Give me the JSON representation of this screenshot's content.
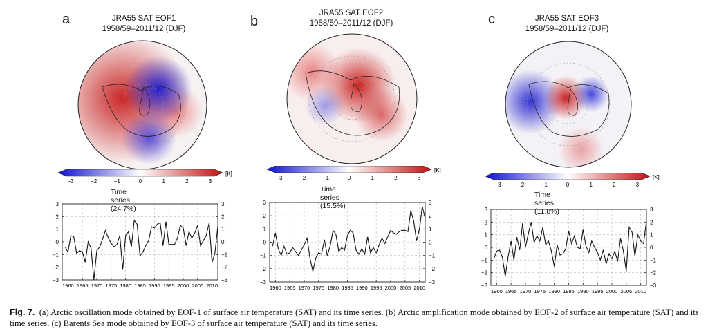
{
  "panels": [
    {
      "letter": "a",
      "title_line1": "JRA55 SAT EOF1",
      "title_line2": "1958/59–2011/12 (DJF)",
      "time_series_label": "Time series (24.7%)"
    },
    {
      "letter": "b",
      "title_line1": "JRA55 SAT EOF2",
      "title_line2": "1958/59–2011/12 (DJF)",
      "time_series_label": "Time series (15.5%)"
    },
    {
      "letter": "c",
      "title_line1": "JRA55 SAT EOF3",
      "title_line2": "1958/59–2011/12 (DJF)",
      "time_series_label": "Time series (11.8%)"
    }
  ],
  "colorbar": {
    "ticks": [
      "-3",
      "-2",
      "-1",
      "0",
      "1",
      "2",
      "3"
    ],
    "unit": "[K]",
    "colors": {
      "neg": "#1010d0",
      "mid": "#ffffff",
      "pos": "#c01010"
    }
  },
  "chart_data": [
    {
      "type": "line",
      "title": "",
      "xlim": [
        1958,
        2012
      ],
      "ylim": [
        -3,
        3
      ],
      "x_ticks": [
        "1960",
        "1965",
        "1970",
        "1975",
        "1980",
        "1985",
        "1990",
        "1995",
        "2000",
        "2005",
        "2010"
      ],
      "y_ticks": [
        "-3",
        "-2",
        "-1",
        "0",
        "1",
        "2",
        "3"
      ],
      "grid": true,
      "x": [
        1959,
        1960,
        1961,
        1962,
        1963,
        1964,
        1965,
        1966,
        1967,
        1968,
        1969,
        1970,
        1971,
        1972,
        1973,
        1974,
        1975,
        1976,
        1977,
        1978,
        1979,
        1980,
        1981,
        1982,
        1983,
        1984,
        1985,
        1986,
        1987,
        1988,
        1989,
        1990,
        1991,
        1992,
        1993,
        1994,
        1995,
        1996,
        1997,
        1998,
        1999,
        2000,
        2001,
        2002,
        2003,
        2004,
        2005,
        2006,
        2007,
        2008,
        2009,
        2010,
        2011,
        2012
      ],
      "values": [
        -0.4,
        -0.8,
        0.5,
        0.4,
        -0.9,
        -0.7,
        -0.8,
        -1.6,
        0.0,
        -0.5,
        -3.0,
        -0.7,
        -0.4,
        0.2,
        0.9,
        0.3,
        -0.1,
        -0.4,
        -0.2,
        0.5,
        -2.2,
        0.5,
        0.8,
        -0.4,
        1.7,
        1.4,
        -1.1,
        -0.8,
        -0.3,
        0.1,
        1.2,
        1.1,
        1.4,
        1.5,
        -0.3,
        1.6,
        -0.2,
        -0.2,
        -0.2,
        0.3,
        1.3,
        1.1,
        -0.3,
        0.8,
        0.3,
        0.7,
        1.3,
        -0.3,
        0.1,
        0.5,
        1.5,
        -1.6,
        -0.9,
        1.2
      ]
    },
    {
      "type": "line",
      "title": "",
      "xlim": [
        1958,
        2012
      ],
      "ylim": [
        -3,
        3
      ],
      "x_ticks": [
        "1960",
        "1965",
        "1970",
        "1975",
        "1980",
        "1985",
        "1990",
        "1995",
        "2000",
        "2005",
        "2010"
      ],
      "y_ticks": [
        "-3",
        "-2",
        "-1",
        "0",
        "1",
        "2",
        "3"
      ],
      "grid": true,
      "x": [
        1959,
        1960,
        1961,
        1962,
        1963,
        1964,
        1965,
        1966,
        1967,
        1968,
        1969,
        1970,
        1971,
        1972,
        1973,
        1974,
        1975,
        1976,
        1977,
        1978,
        1979,
        1980,
        1981,
        1982,
        1983,
        1984,
        1985,
        1986,
        1987,
        1988,
        1989,
        1990,
        1991,
        1992,
        1993,
        1994,
        1995,
        1996,
        1997,
        1998,
        1999,
        2000,
        2001,
        2002,
        2003,
        2004,
        2005,
        2006,
        2007,
        2008,
        2009,
        2010,
        2011,
        2012
      ],
      "values": [
        -0.3,
        0.7,
        -0.5,
        -1.0,
        -0.3,
        -0.9,
        -0.8,
        -0.4,
        -0.7,
        -1.0,
        -0.6,
        -0.2,
        0.3,
        -1.2,
        -2.2,
        -1.2,
        -0.8,
        -0.9,
        0.2,
        -1.0,
        -0.3,
        0.9,
        0.6,
        -0.7,
        -0.4,
        -0.6,
        0.5,
        0.9,
        0.7,
        -0.6,
        -0.9,
        -0.5,
        -0.9,
        0.4,
        -0.8,
        -0.4,
        -0.8,
        -0.2,
        0.3,
        -0.1,
        0.4,
        0.9,
        0.7,
        0.6,
        0.8,
        0.9,
        0.9,
        0.8,
        2.4,
        1.6,
        0.1,
        1.0,
        2.7,
        1.8
      ]
    },
    {
      "type": "line",
      "title": "",
      "xlim": [
        1958,
        2012
      ],
      "ylim": [
        -3,
        3
      ],
      "x_ticks": [
        "1960",
        "1965",
        "1970",
        "1975",
        "1980",
        "1985",
        "1990",
        "1995",
        "2000",
        "2005",
        "2010"
      ],
      "y_ticks": [
        "-3",
        "-2",
        "-1",
        "0",
        "1",
        "2",
        "3"
      ],
      "grid": true,
      "x": [
        1959,
        1960,
        1961,
        1962,
        1963,
        1964,
        1965,
        1966,
        1967,
        1968,
        1969,
        1970,
        1971,
        1972,
        1973,
        1974,
        1975,
        1976,
        1977,
        1978,
        1979,
        1980,
        1981,
        1982,
        1983,
        1984,
        1985,
        1986,
        1987,
        1988,
        1989,
        1990,
        1991,
        1992,
        1993,
        1994,
        1995,
        1996,
        1997,
        1998,
        1999,
        2000,
        2001,
        2002,
        2003,
        2004,
        2005,
        2006,
        2007,
        2008,
        2009,
        2010,
        2011,
        2012
      ],
      "values": [
        -0.9,
        -0.3,
        -0.2,
        -0.8,
        -2.3,
        -0.7,
        0.5,
        -1.0,
        0.8,
        -0.2,
        1.9,
        0.0,
        1.1,
        2.0,
        0.4,
        0.9,
        0.5,
        1.6,
        0.2,
        0.5,
        -0.3,
        -1.5,
        0.2,
        -0.6,
        -0.5,
        -0.1,
        1.3,
        0.3,
        0.9,
        0.0,
        -0.1,
        1.4,
        0.1,
        -0.4,
        0.5,
        0.0,
        -0.4,
        -1.0,
        -0.2,
        -1.3,
        -0.5,
        -0.9,
        -0.3,
        -1.1,
        0.7,
        -0.3,
        -1.9,
        1.6,
        1.2,
        -0.7,
        1.0,
        0.5,
        0.3,
        2.1
      ]
    }
  ],
  "caption": {
    "label": "Fig. 7.",
    "text": "(a) Arctic oscillation mode obtained by EOF-1 of surface air temperature (SAT) and its time series. (b) Arctic amplification mode obtained by EOF-2 of surface air temperature (SAT) and its time series. (c) Barents Sea mode obtained by EOF-3 of surface air temperature (SAT) and its time series."
  }
}
